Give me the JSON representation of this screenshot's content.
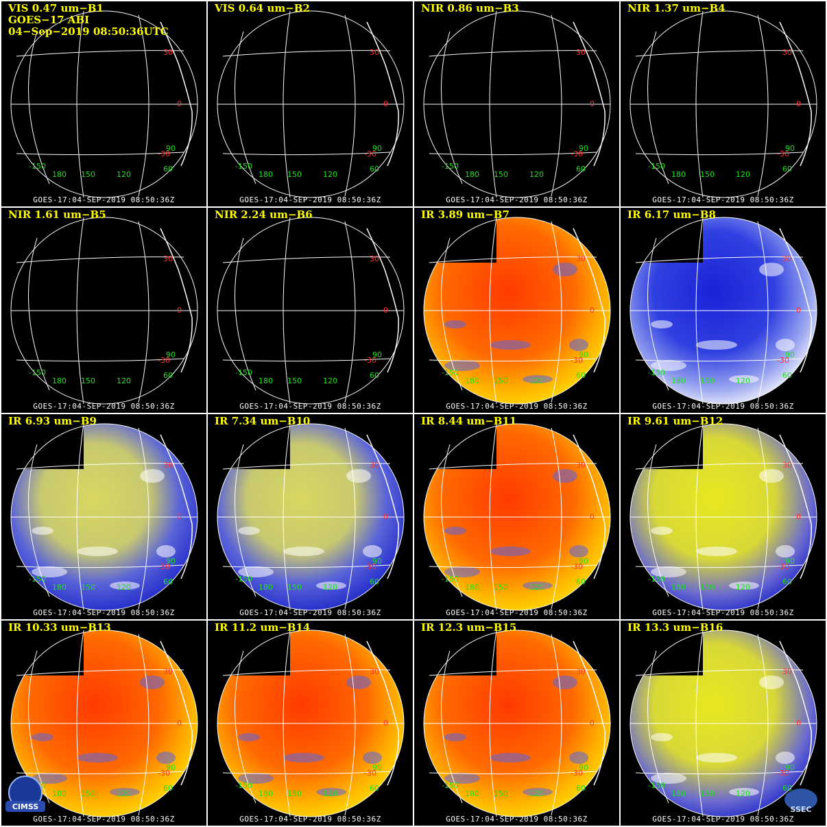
{
  "header": {
    "satellite": "GOES−17 ABI",
    "datetime": "04−Sep−2019 08:50:36UTC"
  },
  "footer_text": "GOES-17:04-SEP-2019 08:50:36Z",
  "grid_labels": {
    "lat_30": "30",
    "lat_0": "0",
    "lat_m30": "-30",
    "lon_m150": "-150",
    "lon_180": "180",
    "lon_150": "150",
    "lon_120": "120",
    "lon_60": "60",
    "lon_90": "90"
  },
  "panels": [
    {
      "title": "VIS 0.47 um−B1",
      "style": "dark"
    },
    {
      "title": "VIS 0.64 um−B2",
      "style": "dark"
    },
    {
      "title": "NIR 0.86 um−B3",
      "style": "dark"
    },
    {
      "title": "NIR 1.37 um−B4",
      "style": "dark"
    },
    {
      "title": "NIR 1.61 um−B5",
      "style": "dark"
    },
    {
      "title": "NIR 2.24 um−B6",
      "style": "dark"
    },
    {
      "title": "IR 3.89 um−B7",
      "style": "red"
    },
    {
      "title": "IR 6.17 um−B8",
      "style": "bluewhite"
    },
    {
      "title": "IR 6.93 um−B9",
      "style": "blueyellow"
    },
    {
      "title": "IR 7.34 um−B10",
      "style": "blueyellow"
    },
    {
      "title": "IR 8.44 um−B11",
      "style": "red"
    },
    {
      "title": "IR 9.61 um−B12",
      "style": "yellowblue"
    },
    {
      "title": "IR 10.33 um−B13",
      "style": "red"
    },
    {
      "title": "IR 11.2 um−B14",
      "style": "red"
    },
    {
      "title": "IR 12.3 um−B15",
      "style": "red"
    },
    {
      "title": "IR 13.3 um−B16",
      "style": "yellowblue"
    }
  ],
  "logos": {
    "cimss": "CIMSS",
    "ssec": "SSEC"
  },
  "colors": {
    "title": "#ffff00",
    "grid": "#ffffff",
    "lat_label": "#ff3030",
    "lon_label": "#20e020",
    "background": "#000000"
  }
}
